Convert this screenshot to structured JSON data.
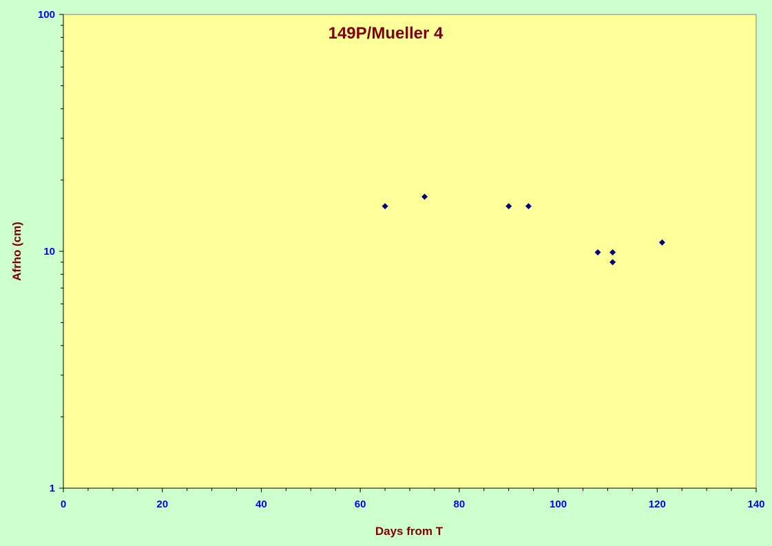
{
  "chart_data": {
    "type": "scatter",
    "title": "149P/Mueller 4",
    "xlabel": "Days from T",
    "ylabel": "Afrho (cm)",
    "xlim": [
      0,
      140
    ],
    "ylim": [
      1,
      100
    ],
    "yscale": "log",
    "grid": false,
    "x_ticks": [
      "0",
      "20",
      "40",
      "60",
      "80",
      "100",
      "120",
      "140"
    ],
    "y_ticks": [
      "1",
      "10",
      "100"
    ],
    "series": [
      {
        "marker": "diamond",
        "x": [
          65,
          73,
          90,
          94,
          108,
          111,
          111,
          121
        ],
        "y": [
          15.5,
          17,
          15.5,
          15.5,
          9.9,
          9.9,
          9.0,
          10.9
        ]
      }
    ]
  },
  "colors": {
    "page_background": "#ccffcc",
    "plot_background": "#ffff99",
    "marker": "#000080",
    "title": "#800000",
    "tick_labels": "#0000ff"
  }
}
